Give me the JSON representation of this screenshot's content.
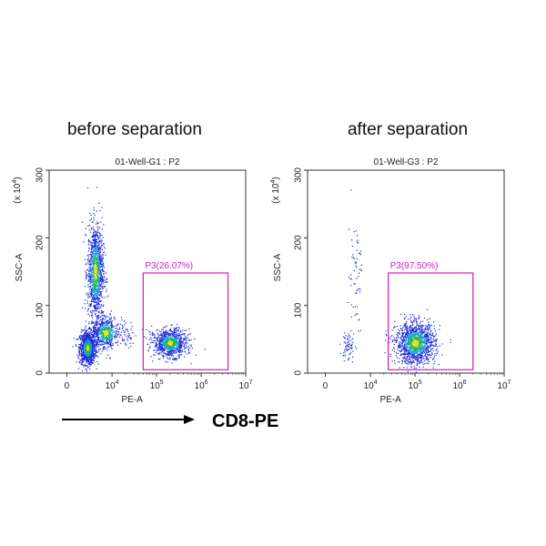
{
  "headings": {
    "left": "before separation",
    "right": "after separation"
  },
  "footer": {
    "label": "CD8-PE"
  },
  "chart_data": [
    {
      "type": "scatter",
      "title": "01-Well-G1 : P2",
      "xlabel": "PE-A",
      "ylabel": "SSC-A",
      "yunit_prefix": "(x 10",
      "yunit_exp": "4",
      "yunit_suffix": ")",
      "x_scale": "biexponential",
      "x_ticks": [
        {
          "value": 0,
          "base": "0",
          "exp": ""
        },
        {
          "value": 10000,
          "base": "10",
          "exp": "4"
        },
        {
          "value": 100000,
          "base": "10",
          "exp": "5"
        },
        {
          "value": 1000000,
          "base": "10",
          "exp": "6"
        },
        {
          "value": 10000000,
          "base": "10",
          "exp": "7"
        }
      ],
      "ylim": [
        0,
        300
      ],
      "y_ticks": [
        "0",
        "100",
        "200",
        "300"
      ],
      "gate": {
        "label": "P3(26.07%)",
        "percent": 26.07,
        "x_range": [
          50000,
          4000000
        ],
        "y_range": [
          5,
          148
        ]
      },
      "populations": [
        {
          "x_log": 1.8,
          "x_sd": 0.35,
          "y": 38,
          "y_sd": 12,
          "count": 1100
        },
        {
          "x_log": 2.5,
          "x_sd": 0.35,
          "y": 150,
          "y_sd": 35,
          "count": 1200
        },
        {
          "x_log": 3.4,
          "x_sd": 0.6,
          "y": 60,
          "y_sd": 12,
          "count": 700
        },
        {
          "x_log": 5.3,
          "x_sd": 0.18,
          "y": 45,
          "y_sd": 10,
          "count": 900
        }
      ]
    },
    {
      "type": "scatter",
      "title": "01-Well-G3 : P2",
      "xlabel": "PE-A",
      "ylabel": "SSC-A",
      "yunit_prefix": "(x 10",
      "yunit_exp": "4",
      "yunit_suffix": ")",
      "x_scale": "biexponential",
      "x_ticks": [
        {
          "value": 0,
          "base": "0",
          "exp": ""
        },
        {
          "value": 10000,
          "base": "10",
          "exp": "4"
        },
        {
          "value": 100000,
          "base": "10",
          "exp": "5"
        },
        {
          "value": 1000000,
          "base": "10",
          "exp": "6"
        },
        {
          "value": 10000000,
          "base": "10",
          "exp": "7"
        }
      ],
      "ylim": [
        0,
        300
      ],
      "y_ticks": [
        "0",
        "100",
        "200",
        "300"
      ],
      "gate": {
        "label": "P3(97.50%)",
        "percent": 97.5,
        "x_range": [
          25000,
          2000000
        ],
        "y_range": [
          5,
          148
        ]
      },
      "populations": [
        {
          "x_log": 2.0,
          "x_sd": 0.3,
          "y": 40,
          "y_sd": 12,
          "count": 70
        },
        {
          "x_log": 2.6,
          "x_sd": 0.3,
          "y": 150,
          "y_sd": 40,
          "count": 60
        },
        {
          "x_log": 5.0,
          "x_sd": 0.22,
          "y": 45,
          "y_sd": 15,
          "count": 1400
        }
      ]
    }
  ],
  "colors": {
    "gate": "#d21cc8",
    "axis": "#333333",
    "arrow": "#000000"
  }
}
